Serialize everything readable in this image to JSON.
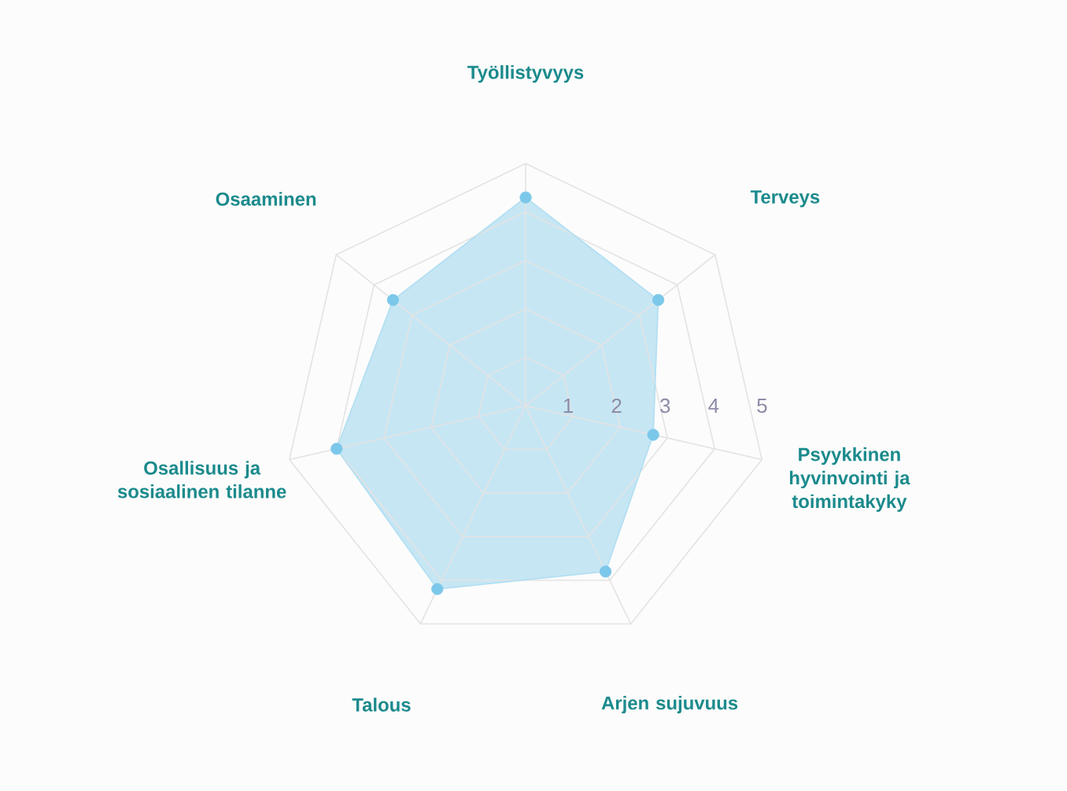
{
  "chart_data": {
    "type": "radar",
    "categories": [
      "Työllistyvyys",
      "Terveys",
      "Psyykkinen hyvinvointi ja toimintakyky",
      "Arjen sujuvuus",
      "Talous",
      "Osallisuus ja sosiaalinen tilanne",
      "Osaaminen"
    ],
    "series": [
      {
        "color": "#7cc8ea",
        "values": [
          4.3,
          3.5,
          2.7,
          3.8,
          4.2,
          4.0,
          3.5
        ]
      }
    ],
    "ylim": [
      0,
      5
    ],
    "yticks": [
      1,
      2,
      3,
      4,
      5
    ],
    "grid": true,
    "marker": "circle"
  }
}
